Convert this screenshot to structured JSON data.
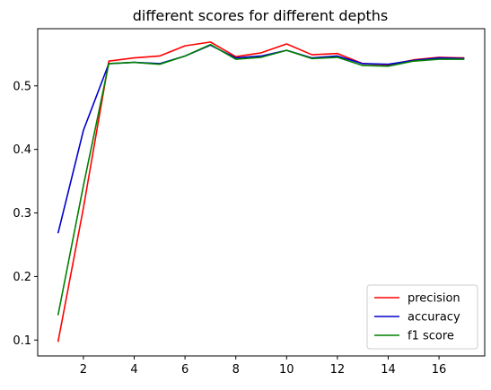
{
  "chart_data": {
    "type": "line",
    "title": "different scores for different depths",
    "xlabel": "",
    "ylabel": "",
    "x": [
      1,
      2,
      3,
      4,
      5,
      6,
      7,
      8,
      9,
      10,
      11,
      12,
      13,
      14,
      15,
      16,
      17
    ],
    "xlim": [
      0.2,
      17.8
    ],
    "ylim": [
      0.075,
      0.59
    ],
    "xticks": [
      2,
      4,
      6,
      8,
      10,
      12,
      14,
      16
    ],
    "yticks": [
      0.1,
      0.2,
      0.3,
      0.4,
      0.5
    ],
    "grid": false,
    "legend_position": "lower-right",
    "series": [
      {
        "name": "precision",
        "color": "#ff0000",
        "values": [
          0.097,
          0.308,
          0.539,
          0.544,
          0.547,
          0.563,
          0.569,
          0.546,
          0.552,
          0.566,
          0.549,
          0.551,
          0.535,
          0.533,
          0.541,
          0.545,
          0.544
        ]
      },
      {
        "name": "accuracy",
        "color": "#0000cc",
        "values": [
          0.268,
          0.43,
          0.535,
          0.537,
          0.535,
          0.547,
          0.564,
          0.544,
          0.547,
          0.556,
          0.544,
          0.547,
          0.535,
          0.534,
          0.54,
          0.544,
          0.543
        ]
      },
      {
        "name": "f1 score",
        "color": "#008000",
        "values": [
          0.139,
          0.343,
          0.535,
          0.537,
          0.534,
          0.547,
          0.565,
          0.542,
          0.545,
          0.556,
          0.543,
          0.545,
          0.532,
          0.531,
          0.539,
          0.542,
          0.542
        ]
      }
    ]
  }
}
